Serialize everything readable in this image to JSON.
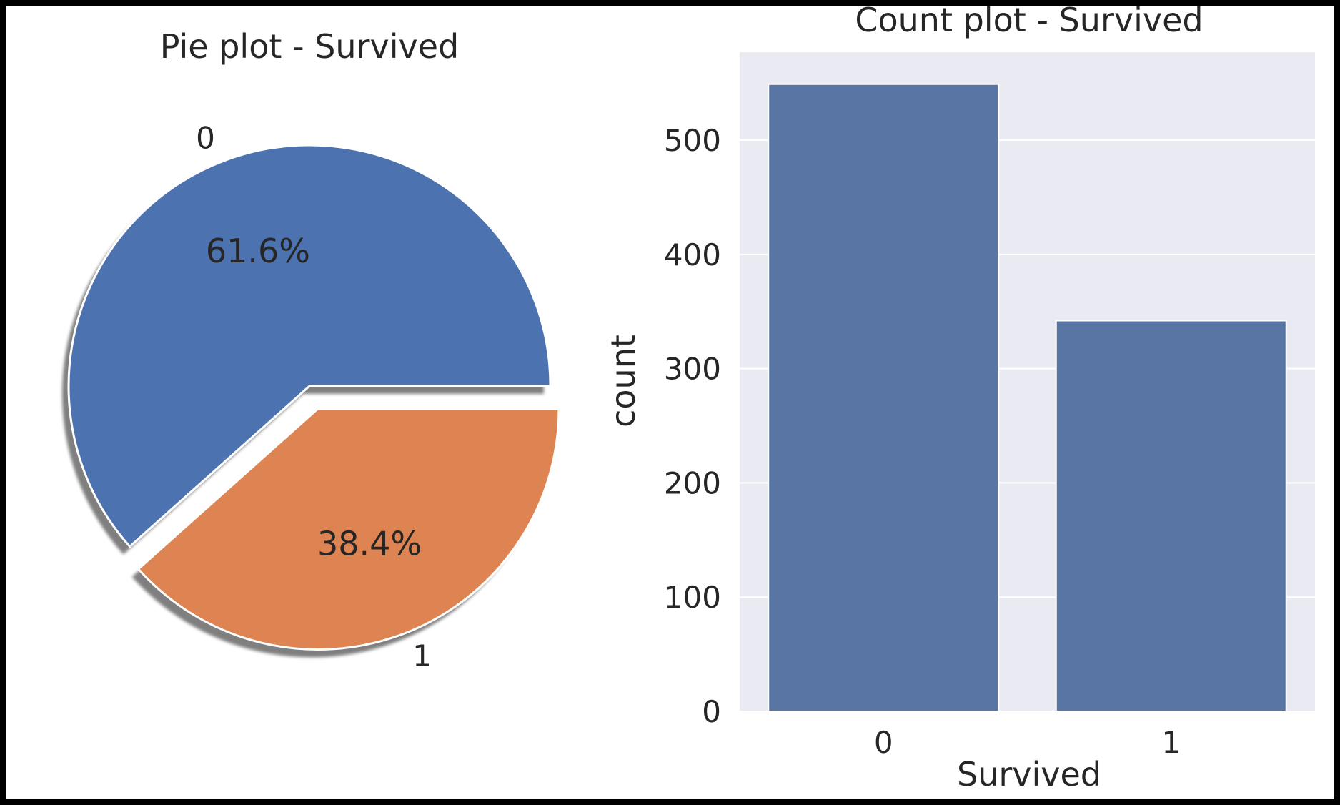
{
  "colors": {
    "pie_slice_0": "#4c72b0",
    "pie_slice_1": "#dd8452",
    "bar": "#5975a4",
    "plot_background": "#eaeaf2",
    "grid": "#ffffff",
    "text": "#262626"
  },
  "chart_data": [
    {
      "type": "pie",
      "title": "Pie plot - Survived",
      "labels": [
        "0",
        "1"
      ],
      "values": [
        61.6,
        38.4
      ],
      "value_labels": [
        "61.6%",
        "38.4%"
      ],
      "explode": [
        0,
        0.1
      ],
      "shadow": true,
      "start_angle_deg": 0
    },
    {
      "type": "bar",
      "title": "Count plot - Survived",
      "categories": [
        "0",
        "1"
      ],
      "values": [
        549,
        342
      ],
      "xlabel": "Survived",
      "ylabel": "count",
      "ylim": [
        0,
        577
      ],
      "yticks": [
        0,
        100,
        200,
        300,
        400,
        500
      ],
      "ytick_labels": [
        "0",
        "100",
        "200",
        "300",
        "400",
        "500"
      ],
      "grid": true
    }
  ]
}
